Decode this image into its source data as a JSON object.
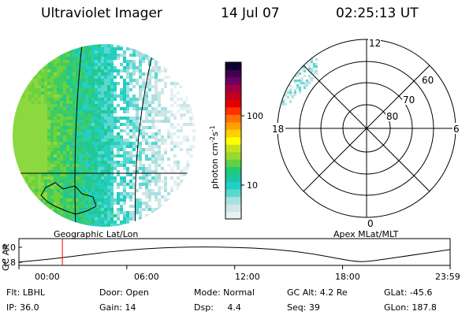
{
  "header": {
    "title": "Ultraviolet Imager",
    "date": "14 Jul 07",
    "time": "02:25:13 UT"
  },
  "colorbar": {
    "label": "photon cm",
    "label_sup1": "-2",
    "label_mid": "s",
    "label_sup2": "-1",
    "tick_100": "100",
    "tick_10": "10",
    "colors": [
      "#e6f2f2",
      "#cfe6e6",
      "#a8e0e0",
      "#59d8d0",
      "#22cfc8",
      "#18c8a0",
      "#22c878",
      "#60d040",
      "#98d830",
      "#c8e020",
      "#ffff00",
      "#ffd000",
      "#ffa000",
      "#ff7000",
      "#ff3000",
      "#e00000",
      "#c00020",
      "#a00040",
      "#700060",
      "#400050",
      "#100030"
    ]
  },
  "polar": {
    "lat_labels": [
      "60",
      "70",
      "80"
    ],
    "mlt_labels": {
      "top": "12",
      "left": "18",
      "right": "6",
      "bottom": "0"
    }
  },
  "map": {
    "caption_left": "Geographic Lat/Lon",
    "caption_right": "Apex MLat/MLT"
  },
  "altplot": {
    "ylabel": "GC Alt",
    "y_ticks": [
      "9.0",
      "1.8"
    ],
    "x_ticks": [
      "00:00",
      "06:00",
      "12:00",
      "18:00",
      "23:59"
    ]
  },
  "info": {
    "row1": [
      {
        "label": "Flt: LBHL"
      },
      {
        "label": "Door: Open"
      },
      {
        "label": "Mode: Normal"
      },
      {
        "label": "GC Alt: 4.2 Re"
      },
      {
        "label": "GLat: -45.6"
      }
    ],
    "row2": [
      {
        "label": "IP: 36.0"
      },
      {
        "label": "Gain: 14"
      },
      {
        "label": "Dsp:     4.4"
      },
      {
        "label": "Seq: 39"
      },
      {
        "label": "GLon: 187.8"
      }
    ]
  },
  "chart_data": {
    "type": "line",
    "ylabel": "GC Alt",
    "y_ticks": [
      9.0,
      1.8
    ],
    "x_ticks": [
      "00:00",
      "06:00",
      "12:00",
      "18:00",
      "23:59"
    ],
    "series": [
      {
        "x": [
          "00:00",
          "02:00",
          "04:00",
          "06:00",
          "08:00",
          "10:00",
          "12:00",
          "14:00",
          "16:00",
          "18:00",
          "19:00",
          "20:00",
          "22:00",
          "23:59"
        ],
        "values": [
          1.9,
          3.5,
          5.8,
          7.7,
          8.8,
          9.2,
          9.0,
          8.2,
          6.4,
          3.2,
          1.8,
          2.8,
          5.4,
          7.9
        ]
      }
    ],
    "cursor_time": "02:25"
  }
}
